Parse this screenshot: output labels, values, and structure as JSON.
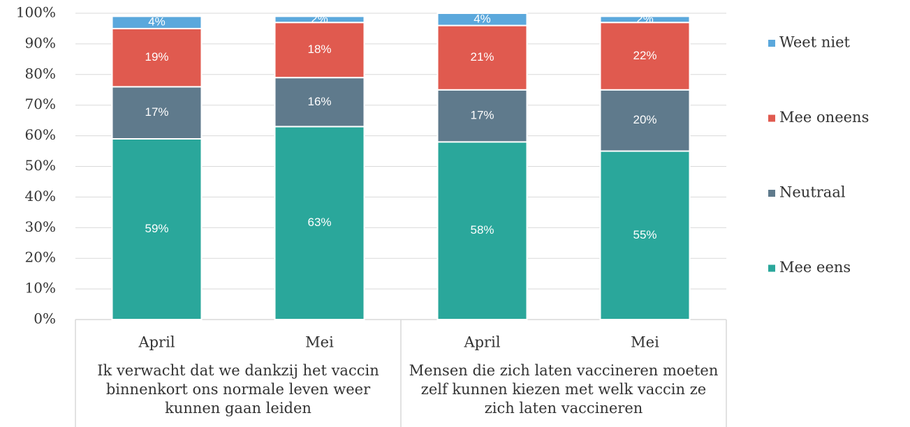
{
  "chart_data": {
    "type": "stacked_bar",
    "categories": [
      "April",
      "Mei",
      "April",
      "Mei"
    ],
    "groups": [
      "Ik verwacht dat we dankzij het vaccin binnenkort ons normale leven weer kunnen gaan leiden",
      "Mensen die zich laten vaccineren moeten zelf kunnen kiezen met welk vaccin ze zich laten vaccineren"
    ],
    "series": [
      {
        "name": "Mee eens",
        "color": "#2aa79b",
        "values": [
          59,
          63,
          58,
          55
        ],
        "value_labels": [
          "59%",
          "63%",
          "58%",
          "55%"
        ]
      },
      {
        "name": "Neutraal",
        "color": "#5f7a8c",
        "values": [
          17,
          16,
          17,
          20
        ],
        "value_labels": [
          "17%",
          "16%",
          "17%",
          "20%"
        ]
      },
      {
        "name": "Mee oneens",
        "color": "#e05a4f",
        "values": [
          19,
          18,
          21,
          22
        ],
        "value_labels": [
          "19%",
          "18%",
          "21%",
          "22%"
        ]
      },
      {
        "name": "Weet niet",
        "color": "#5ba8dc",
        "values": [
          4,
          2,
          4,
          2
        ],
        "value_labels": [
          "4%",
          "2%",
          "4%",
          "2%"
        ]
      }
    ],
    "ylim": [
      0,
      100
    ],
    "yticks": [
      {
        "value": 0,
        "label": "0%"
      },
      {
        "value": 10,
        "label": "10%"
      },
      {
        "value": 20,
        "label": "20%"
      },
      {
        "value": 30,
        "label": "30%"
      },
      {
        "value": 40,
        "label": "40%"
      },
      {
        "value": 50,
        "label": "50%"
      },
      {
        "value": 60,
        "label": "60%"
      },
      {
        "value": 70,
        "label": "70%"
      },
      {
        "value": 80,
        "label": "80%"
      },
      {
        "value": 90,
        "label": "90%"
      },
      {
        "value": 100,
        "label": "100%"
      }
    ],
    "grid": true,
    "legend": "right"
  }
}
